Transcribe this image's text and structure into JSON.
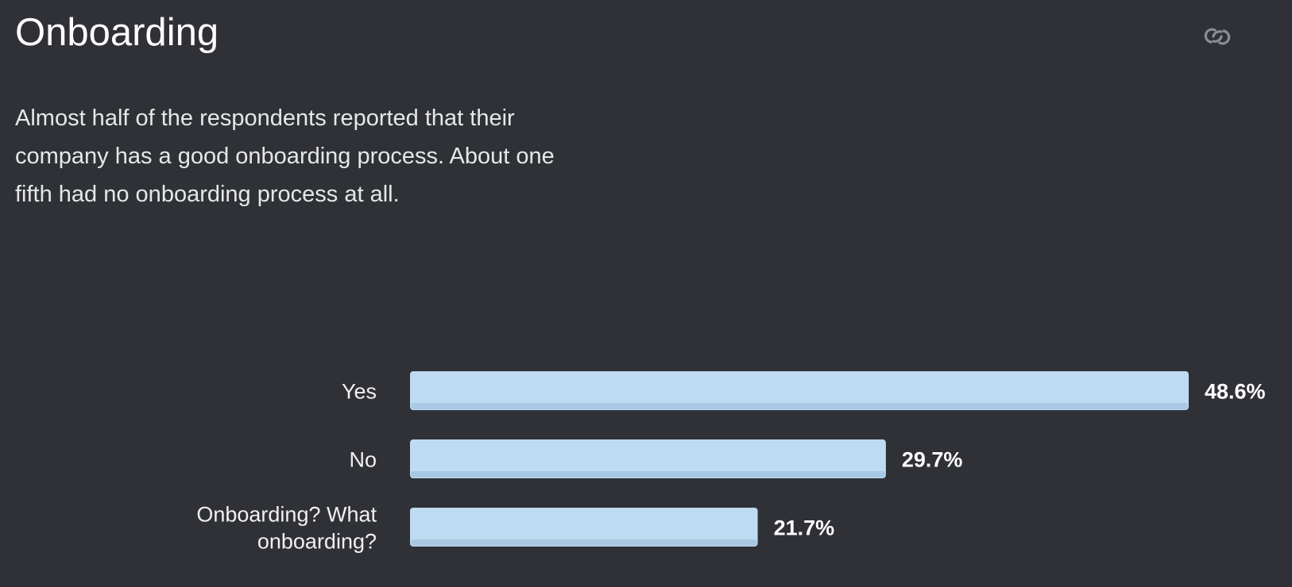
{
  "header": {
    "title": "Onboarding",
    "link_icon": "link-icon"
  },
  "description": "Almost half of the respondents reported that their company has a good onboarding process. About one fifth had no onboarding process at all.",
  "colors": {
    "background": "#2f3136",
    "bar": "#bfdbf2",
    "bar_shadow": "#a9c8e3",
    "text": "#ffffff",
    "muted_icon": "#8a8d93"
  },
  "chart_data": {
    "type": "bar",
    "orientation": "horizontal",
    "categories": [
      "Yes",
      "No",
      "Onboarding? What onboarding?"
    ],
    "category_lines": [
      [
        "Yes"
      ],
      [
        "No"
      ],
      [
        "Onboarding? What",
        "onboarding?"
      ]
    ],
    "values": [
      48.6,
      29.7,
      21.7
    ],
    "value_labels": [
      "48.6%",
      "29.7%",
      "21.7%"
    ],
    "unit": "%",
    "title": "",
    "xlabel": "",
    "ylabel": "",
    "xlim": [
      0,
      48.6
    ],
    "grid": false,
    "legend": "none"
  }
}
